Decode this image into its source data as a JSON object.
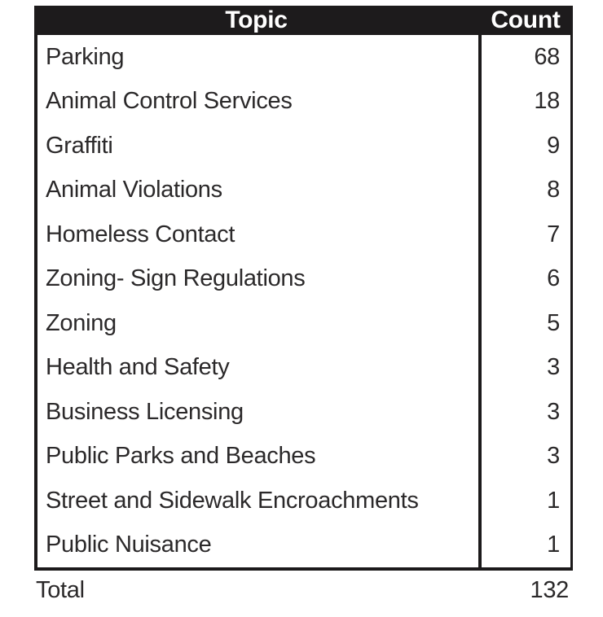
{
  "table": {
    "columns": {
      "topic": "Topic",
      "count": "Count"
    },
    "rows": [
      {
        "topic": "Parking",
        "count": "68"
      },
      {
        "topic": "Animal Control Services",
        "count": "18"
      },
      {
        "topic": "Graffiti",
        "count": "9"
      },
      {
        "topic": "Animal Violations",
        "count": "8"
      },
      {
        "topic": "Homeless Contact",
        "count": "7"
      },
      {
        "topic": "Zoning- Sign Regulations",
        "count": "6"
      },
      {
        "topic": "Zoning",
        "count": "5"
      },
      {
        "topic": "Health and Safety",
        "count": "3"
      },
      {
        "topic": "Business Licensing",
        "count": "3"
      },
      {
        "topic": "Public Parks and Beaches",
        "count": "3"
      },
      {
        "topic": "Street and Sidewalk Encroachments",
        "count": "1"
      },
      {
        "topic": "Public Nuisance",
        "count": "1"
      }
    ],
    "total_label": "Total",
    "total_value": "132"
  },
  "colors": {
    "header_background": "#1d1b1c",
    "header_text": "#ffffff",
    "border": "#1c1a1b",
    "body_text": "#2b292a",
    "background": "#ffffff"
  },
  "chart_data": {
    "type": "table",
    "title": "",
    "categories": [
      "Parking",
      "Animal Control Services",
      "Graffiti",
      "Animal Violations",
      "Homeless Contact",
      "Zoning- Sign Regulations",
      "Zoning",
      "Health and Safety",
      "Business Licensing",
      "Public Parks and Beaches",
      "Street and Sidewalk Encroachments",
      "Public Nuisance"
    ],
    "values": [
      68,
      18,
      9,
      8,
      7,
      6,
      5,
      3,
      3,
      3,
      1,
      1
    ],
    "total": 132
  }
}
